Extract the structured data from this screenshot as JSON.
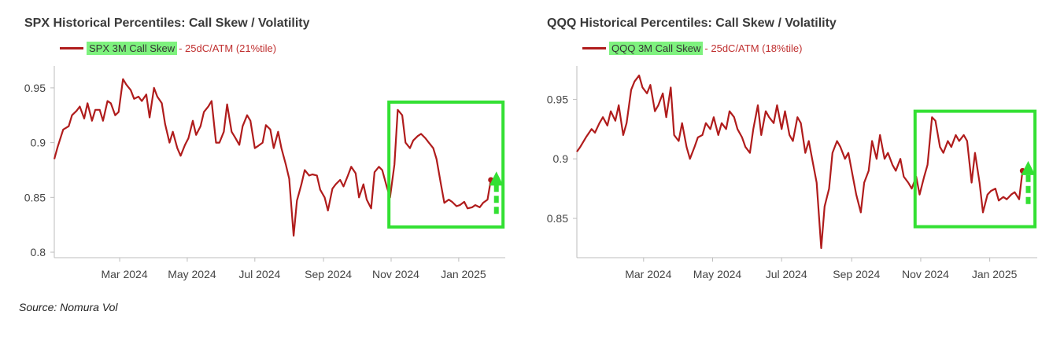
{
  "chart_data": [
    {
      "type": "line",
      "title": "SPX Historical Percentiles: Call Skew / Volatility",
      "legend": {
        "name": "SPX 3M Call Skew",
        "detail": "- 25dC/ATM (21%tile)",
        "placement": "top-left"
      },
      "colors": {
        "line": "#b01c1c",
        "highlight": "#33e033",
        "legend_highlight": "#7ef27e",
        "arrow": "#33e033"
      },
      "x_tick_labels": [
        "Mar 2024",
        "May 2024",
        "Jul 2024",
        "Sep 2024",
        "Nov 2024",
        "Jan 2025"
      ],
      "x_tick_dates": [
        "2024-03-01",
        "2024-05-01",
        "2024-07-01",
        "2024-09-01",
        "2024-11-01",
        "2025-01-01"
      ],
      "x_range": [
        "2024-01-02",
        "2025-02-12"
      ],
      "y_ticks": [
        0.8,
        0.85,
        0.9,
        0.95
      ],
      "y_tick_labels": [
        "0.8",
        "0.85",
        "0.9",
        "0.95"
      ],
      "ylim": [
        0.795,
        0.97
      ],
      "grid": false,
      "highlight_box": {
        "x": [
          "2024-10-30",
          "2025-02-10"
        ],
        "y": [
          0.823,
          0.937
        ]
      },
      "arrow": {
        "date": "2025-02-04",
        "y_from": 0.835,
        "y_to": 0.868
      },
      "series": [
        {
          "x": [
            "2024-01-02",
            "2024-01-05",
            "2024-01-10",
            "2024-01-15",
            "2024-01-18",
            "2024-01-22",
            "2024-01-25",
            "2024-01-29",
            "2024-02-01",
            "2024-02-05",
            "2024-02-08",
            "2024-02-12",
            "2024-02-15",
            "2024-02-19",
            "2024-02-22",
            "2024-02-26",
            "2024-02-29",
            "2024-03-04",
            "2024-03-07",
            "2024-03-11",
            "2024-03-14",
            "2024-03-18",
            "2024-03-21",
            "2024-03-25",
            "2024-03-28",
            "2024-04-01",
            "2024-04-04",
            "2024-04-08",
            "2024-04-11",
            "2024-04-15",
            "2024-04-18",
            "2024-04-22",
            "2024-04-25",
            "2024-04-29",
            "2024-05-02",
            "2024-05-06",
            "2024-05-09",
            "2024-05-13",
            "2024-05-16",
            "2024-05-20",
            "2024-05-23",
            "2024-05-27",
            "2024-05-30",
            "2024-06-03",
            "2024-06-06",
            "2024-06-10",
            "2024-06-13",
            "2024-06-17",
            "2024-06-20",
            "2024-06-24",
            "2024-06-27",
            "2024-07-01",
            "2024-07-04",
            "2024-07-08",
            "2024-07-11",
            "2024-07-15",
            "2024-07-18",
            "2024-07-22",
            "2024-07-25",
            "2024-07-29",
            "2024-08-01",
            "2024-08-05",
            "2024-08-08",
            "2024-08-12",
            "2024-08-15",
            "2024-08-19",
            "2024-08-22",
            "2024-08-26",
            "2024-08-29",
            "2024-09-02",
            "2024-09-05",
            "2024-09-09",
            "2024-09-12",
            "2024-09-16",
            "2024-09-19",
            "2024-09-23",
            "2024-09-26",
            "2024-09-30",
            "2024-10-03",
            "2024-10-07",
            "2024-10-10",
            "2024-10-14",
            "2024-10-17",
            "2024-10-21",
            "2024-10-24",
            "2024-10-28",
            "2024-10-31",
            "2024-11-04",
            "2024-11-07",
            "2024-11-11",
            "2024-11-14",
            "2024-11-18",
            "2024-11-21",
            "2024-11-25",
            "2024-11-28",
            "2024-12-02",
            "2024-12-05",
            "2024-12-09",
            "2024-12-12",
            "2024-12-16",
            "2024-12-19",
            "2024-12-23",
            "2024-12-26",
            "2024-12-30",
            "2025-01-02",
            "2025-01-06",
            "2025-01-09",
            "2025-01-13",
            "2025-01-16",
            "2025-01-20",
            "2025-01-23",
            "2025-01-27",
            "2025-01-30"
          ],
          "values": [
            0.885,
            0.896,
            0.912,
            0.915,
            0.925,
            0.929,
            0.933,
            0.922,
            0.936,
            0.92,
            0.93,
            0.93,
            0.92,
            0.938,
            0.936,
            0.925,
            0.928,
            0.958,
            0.953,
            0.948,
            0.94,
            0.942,
            0.938,
            0.944,
            0.923,
            0.95,
            0.942,
            0.936,
            0.917,
            0.9,
            0.91,
            0.895,
            0.888,
            0.898,
            0.904,
            0.92,
            0.907,
            0.915,
            0.928,
            0.933,
            0.938,
            0.9,
            0.9,
            0.91,
            0.935,
            0.91,
            0.905,
            0.898,
            0.915,
            0.925,
            0.92,
            0.895,
            0.897,
            0.9,
            0.916,
            0.912,
            0.895,
            0.91,
            0.895,
            0.88,
            0.867,
            0.815,
            0.847,
            0.862,
            0.875,
            0.87,
            0.871,
            0.87,
            0.857,
            0.85,
            0.838,
            0.858,
            0.862,
            0.866,
            0.86,
            0.87,
            0.878,
            0.872,
            0.85,
            0.862,
            0.848,
            0.84,
            0.873,
            0.878,
            0.875,
            0.86,
            0.85,
            0.88,
            0.93,
            0.925,
            0.9,
            0.895,
            0.902,
            0.906,
            0.908,
            0.904,
            0.9,
            0.895,
            0.885,
            0.862,
            0.845,
            0.848,
            0.846,
            0.842,
            0.843,
            0.846,
            0.84,
            0.841,
            0.843,
            0.841,
            0.845,
            0.848,
            0.866
          ]
        }
      ]
    },
    {
      "type": "line",
      "title": "QQQ Historical Percentiles: Call Skew / Volatility",
      "legend": {
        "name": "QQQ 3M Call Skew",
        "detail": "- 25dC/ATM (18%tile)",
        "placement": "top-left"
      },
      "colors": {
        "line": "#b01c1c",
        "highlight": "#33e033",
        "legend_highlight": "#7ef27e",
        "arrow": "#33e033"
      },
      "x_tick_labels": [
        "Mar 2024",
        "May 2024",
        "Jul 2024",
        "Sep 2024",
        "Nov 2024",
        "Jan 2025"
      ],
      "x_tick_dates": [
        "2024-03-01",
        "2024-05-01",
        "2024-07-01",
        "2024-09-01",
        "2024-11-01",
        "2025-01-01"
      ],
      "x_range": [
        "2024-01-02",
        "2025-02-12"
      ],
      "y_ticks": [
        0.85,
        0.9,
        0.95
      ],
      "y_tick_labels": [
        "0.85",
        "0.9",
        "0.95"
      ],
      "ylim": [
        0.817,
        0.978
      ],
      "grid": false,
      "highlight_box": {
        "x": [
          "2024-10-27",
          "2025-02-10"
        ],
        "y": [
          0.843,
          0.94
        ]
      },
      "arrow": {
        "date": "2025-02-04",
        "y_from": 0.862,
        "y_to": 0.893
      },
      "series": [
        {
          "x": [
            "2024-01-02",
            "2024-01-05",
            "2024-01-10",
            "2024-01-15",
            "2024-01-18",
            "2024-01-22",
            "2024-01-25",
            "2024-01-29",
            "2024-02-01",
            "2024-02-05",
            "2024-02-08",
            "2024-02-12",
            "2024-02-15",
            "2024-02-19",
            "2024-02-22",
            "2024-02-26",
            "2024-02-29",
            "2024-03-04",
            "2024-03-07",
            "2024-03-11",
            "2024-03-14",
            "2024-03-18",
            "2024-03-21",
            "2024-03-25",
            "2024-03-28",
            "2024-04-01",
            "2024-04-04",
            "2024-04-08",
            "2024-04-11",
            "2024-04-15",
            "2024-04-18",
            "2024-04-22",
            "2024-04-25",
            "2024-04-29",
            "2024-05-02",
            "2024-05-06",
            "2024-05-09",
            "2024-05-13",
            "2024-05-16",
            "2024-05-20",
            "2024-05-23",
            "2024-05-27",
            "2024-05-30",
            "2024-06-03",
            "2024-06-06",
            "2024-06-10",
            "2024-06-13",
            "2024-06-17",
            "2024-06-20",
            "2024-06-24",
            "2024-06-27",
            "2024-07-01",
            "2024-07-04",
            "2024-07-08",
            "2024-07-11",
            "2024-07-15",
            "2024-07-18",
            "2024-07-22",
            "2024-07-25",
            "2024-07-29",
            "2024-08-01",
            "2024-08-05",
            "2024-08-08",
            "2024-08-12",
            "2024-08-15",
            "2024-08-19",
            "2024-08-22",
            "2024-08-26",
            "2024-08-29",
            "2024-09-02",
            "2024-09-05",
            "2024-09-09",
            "2024-09-12",
            "2024-09-16",
            "2024-09-19",
            "2024-09-23",
            "2024-09-26",
            "2024-09-30",
            "2024-10-03",
            "2024-10-07",
            "2024-10-10",
            "2024-10-14",
            "2024-10-17",
            "2024-10-21",
            "2024-10-24",
            "2024-10-28",
            "2024-10-31",
            "2024-11-04",
            "2024-11-07",
            "2024-11-11",
            "2024-11-14",
            "2024-11-18",
            "2024-11-21",
            "2024-11-25",
            "2024-11-28",
            "2024-12-02",
            "2024-12-05",
            "2024-12-09",
            "2024-12-12",
            "2024-12-16",
            "2024-12-19",
            "2024-12-23",
            "2024-12-26",
            "2024-12-30",
            "2025-01-02",
            "2025-01-06",
            "2025-01-09",
            "2025-01-13",
            "2025-01-16",
            "2025-01-20",
            "2025-01-23",
            "2025-01-27",
            "2025-01-30"
          ],
          "values": [
            0.906,
            0.91,
            0.918,
            0.925,
            0.922,
            0.93,
            0.935,
            0.928,
            0.94,
            0.932,
            0.945,
            0.92,
            0.93,
            0.958,
            0.965,
            0.97,
            0.96,
            0.955,
            0.962,
            0.94,
            0.945,
            0.955,
            0.935,
            0.96,
            0.92,
            0.915,
            0.93,
            0.91,
            0.9,
            0.91,
            0.918,
            0.92,
            0.93,
            0.925,
            0.935,
            0.92,
            0.93,
            0.925,
            0.94,
            0.935,
            0.925,
            0.918,
            0.91,
            0.905,
            0.925,
            0.945,
            0.92,
            0.94,
            0.935,
            0.93,
            0.945,
            0.925,
            0.94,
            0.92,
            0.915,
            0.935,
            0.93,
            0.905,
            0.915,
            0.895,
            0.88,
            0.825,
            0.86,
            0.875,
            0.905,
            0.915,
            0.91,
            0.9,
            0.905,
            0.885,
            0.87,
            0.855,
            0.88,
            0.89,
            0.915,
            0.9,
            0.92,
            0.9,
            0.905,
            0.895,
            0.89,
            0.9,
            0.885,
            0.88,
            0.875,
            0.885,
            0.87,
            0.885,
            0.895,
            0.935,
            0.932,
            0.91,
            0.905,
            0.915,
            0.91,
            0.92,
            0.915,
            0.92,
            0.915,
            0.88,
            0.905,
            0.88,
            0.855,
            0.87,
            0.873,
            0.875,
            0.865,
            0.868,
            0.866,
            0.87,
            0.872,
            0.866,
            0.89
          ]
        }
      ]
    }
  ],
  "source": "Source: Nomura Vol"
}
